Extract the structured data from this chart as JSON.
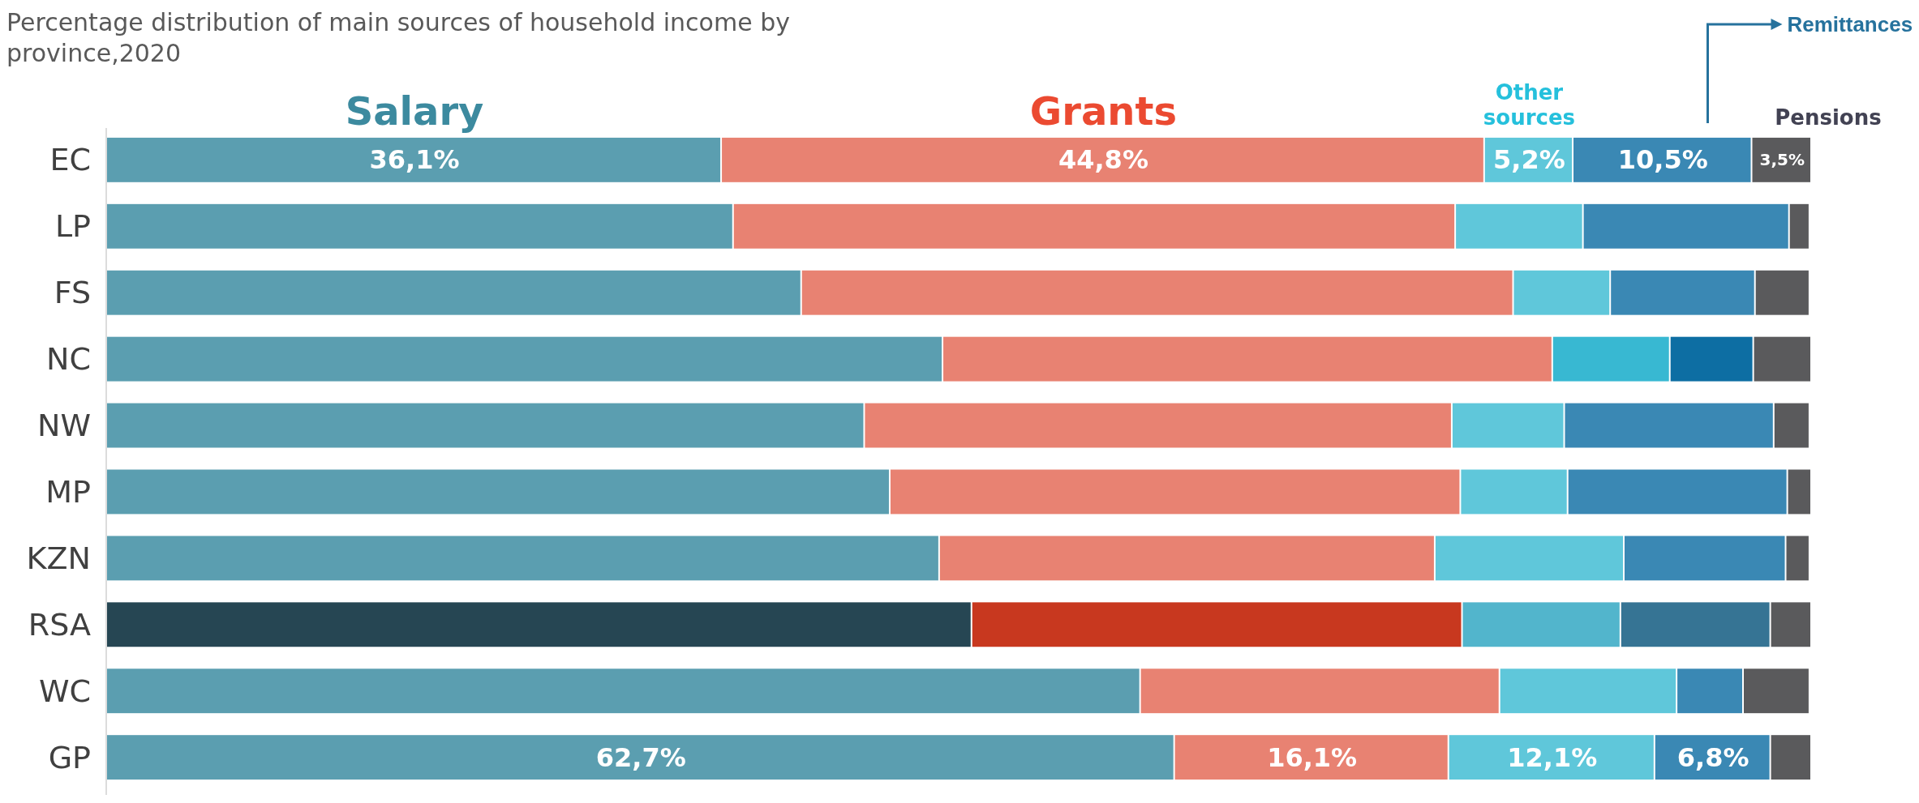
{
  "chart_data": {
    "type": "bar",
    "orientation": "horizontal",
    "stacked": true,
    "legend": "top",
    "title": "Percentage distribution of main sources of household income by province,2020",
    "categories": [
      "EC",
      "LP",
      "FS",
      "NC",
      "NW",
      "MP",
      "KZN",
      "RSA",
      "WC",
      "GP"
    ],
    "series": [
      {
        "name": "Salary",
        "color": "#5b9eb0",
        "colors": [
          "#5b9eb0",
          "#5b9eb0",
          "#5b9eb0",
          "#5b9eb0",
          "#5b9eb0",
          "#5b9eb0",
          "#5b9eb0",
          "#264653",
          "#5b9eb0",
          "#5b9eb0"
        ],
        "values": [
          36.1,
          36.8,
          40.8,
          49.1,
          44.5,
          46.0,
          48.9,
          50.8,
          60.7,
          62.7
        ],
        "value_labels": [
          "36,1%",
          null,
          null,
          null,
          null,
          null,
          null,
          null,
          null,
          "62,7%"
        ]
      },
      {
        "name": "Grants",
        "color": "#e88272",
        "colors": [
          "#e88272",
          "#e88272",
          "#e88272",
          "#e88272",
          "#e88272",
          "#e88272",
          "#e88272",
          "#c8381f",
          "#e88272",
          "#e88272"
        ],
        "values": [
          44.8,
          42.4,
          41.8,
          35.8,
          34.5,
          33.5,
          29.1,
          28.8,
          21.1,
          16.1
        ],
        "value_labels": [
          "44,8%",
          null,
          null,
          null,
          null,
          null,
          null,
          null,
          null,
          "16,1%"
        ]
      },
      {
        "name": "Other sources",
        "color": "#5fc7da",
        "colors": [
          "#5fc7da",
          "#5fc7da",
          "#5fc7da",
          "#38b8d2",
          "#5fc7da",
          "#5fc7da",
          "#5fc7da",
          "#52b5cc",
          "#5fc7da",
          "#5fc7da"
        ],
        "values": [
          5.2,
          7.5,
          5.7,
          6.9,
          6.6,
          6.3,
          11.1,
          9.3,
          10.4,
          12.1
        ],
        "value_labels": [
          "5,2%",
          null,
          null,
          null,
          null,
          null,
          null,
          null,
          null,
          "12,1%"
        ]
      },
      {
        "name": "Remittances",
        "color": "#3a88b4",
        "colors": [
          "#3a88b4",
          "#3a88b4",
          "#3a88b4",
          "#0d6ea3",
          "#3a88b4",
          "#3a88b4",
          "#3a88b4",
          "#367494",
          "#3a88b4",
          "#3a88b4"
        ],
        "values": [
          10.5,
          12.1,
          8.5,
          4.9,
          12.3,
          12.9,
          9.5,
          8.8,
          3.9,
          6.8
        ],
        "value_labels": [
          "10,5%",
          null,
          null,
          null,
          null,
          null,
          null,
          null,
          null,
          "6,8%"
        ]
      },
      {
        "name": "Pensions",
        "color": "#5a5a5c",
        "colors": [
          "#5a5a5c",
          "#5a5a5c",
          "#5a5a5c",
          "#5a5a5c",
          "#5a5a5c",
          "#5a5a5c",
          "#5a5a5c",
          "#5a5a5c",
          "#5a5a5c",
          "#5a5a5c"
        ],
        "values": [
          3.5,
          1.2,
          3.2,
          3.4,
          2.1,
          1.4,
          1.4,
          2.4,
          3.9,
          2.4
        ],
        "value_labels": [
          "3,5%",
          null,
          null,
          null,
          null,
          null,
          null,
          null,
          null,
          null
        ]
      }
    ]
  }
}
